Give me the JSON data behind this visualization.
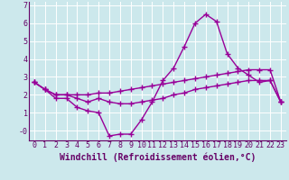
{
  "xlabel": "Windchill (Refroidissement éolien,°C)",
  "ylabel": "",
  "background_color": "#cce8ec",
  "grid_color": "#ffffff",
  "line_color": "#990099",
  "ylim": [
    -0.55,
    7.2
  ],
  "xlim": [
    -0.5,
    23.5
  ],
  "xticks": [
    0,
    1,
    2,
    3,
    4,
    5,
    6,
    7,
    8,
    9,
    10,
    11,
    12,
    13,
    14,
    15,
    16,
    17,
    18,
    19,
    20,
    21,
    22,
    23
  ],
  "yticks": [
    0,
    1,
    2,
    3,
    4,
    5,
    6,
    7
  ],
  "ytick_labels": [
    "-0",
    "1",
    "2",
    "3",
    "4",
    "5",
    "6",
    "7"
  ],
  "line1": [
    2.7,
    2.3,
    1.8,
    1.8,
    1.3,
    1.1,
    1.0,
    -0.3,
    -0.2,
    -0.2,
    0.6,
    1.6,
    2.8,
    3.5,
    4.7,
    6.0,
    6.5,
    6.1,
    4.3,
    3.5,
    3.1,
    2.7,
    2.8,
    1.6
  ],
  "line2": [
    2.7,
    2.3,
    2.0,
    2.0,
    1.8,
    1.6,
    1.8,
    1.6,
    1.5,
    1.5,
    1.6,
    1.7,
    1.8,
    2.0,
    2.1,
    2.3,
    2.4,
    2.5,
    2.6,
    2.7,
    2.8,
    2.8,
    2.8,
    1.6
  ],
  "line3": [
    2.7,
    2.3,
    2.0,
    2.0,
    2.0,
    2.0,
    2.1,
    2.1,
    2.2,
    2.3,
    2.4,
    2.5,
    2.6,
    2.7,
    2.8,
    2.9,
    3.0,
    3.1,
    3.2,
    3.3,
    3.4,
    3.4,
    3.4,
    1.6
  ],
  "marker": "+",
  "markersize": 4,
  "linewidth": 1.0,
  "font_size": 6,
  "xlabel_font_size": 7
}
